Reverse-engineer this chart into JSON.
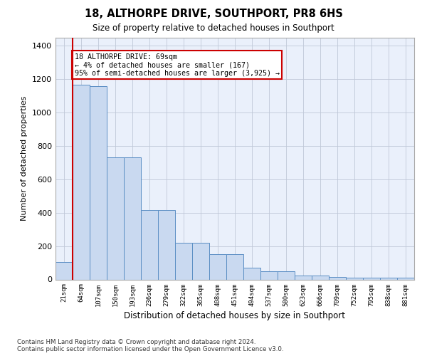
{
  "title1": "18, ALTHORPE DRIVE, SOUTHPORT, PR8 6HS",
  "title2": "Size of property relative to detached houses in Southport",
  "xlabel": "Distribution of detached houses by size in Southport",
  "ylabel": "Number of detached properties",
  "footnote": "Contains HM Land Registry data © Crown copyright and database right 2024.\nContains public sector information licensed under the Open Government Licence v3.0.",
  "bar_labels": [
    "21sqm",
    "64sqm",
    "107sqm",
    "150sqm",
    "193sqm",
    "236sqm",
    "279sqm",
    "322sqm",
    "365sqm",
    "408sqm",
    "451sqm",
    "494sqm",
    "537sqm",
    "580sqm",
    "623sqm",
    "666sqm",
    "709sqm",
    "752sqm",
    "795sqm",
    "838sqm",
    "881sqm"
  ],
  "bar_values": [
    105,
    1165,
    1160,
    730,
    730,
    415,
    415,
    218,
    218,
    150,
    150,
    70,
    50,
    50,
    25,
    25,
    15,
    10,
    10,
    10,
    10
  ],
  "bar_color": "#c9d9f0",
  "bar_edge_color": "#5b8ec4",
  "property_line_x": 1,
  "annotation_title": "18 ALTHORPE DRIVE: 69sqm",
  "annotation_line1": "← 4% of detached houses are smaller (167)",
  "annotation_line2": "95% of semi-detached houses are larger (3,925) →",
  "annotation_box_color": "#cc0000",
  "ylim": [
    0,
    1450
  ],
  "yticks": [
    0,
    200,
    400,
    600,
    800,
    1000,
    1200,
    1400
  ],
  "bg_color": "#eaf0fb",
  "figsize": [
    6.0,
    5.0
  ],
  "dpi": 100
}
